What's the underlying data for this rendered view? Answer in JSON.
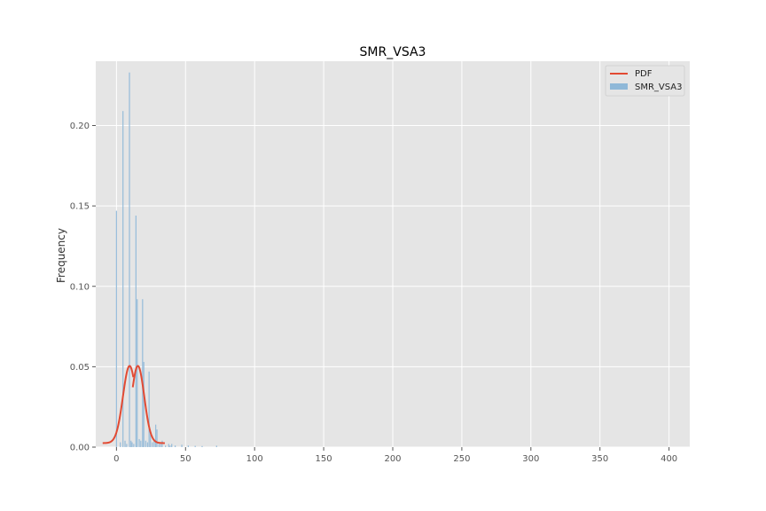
{
  "chart_data": {
    "type": "bar",
    "title": "SMR_VSA3",
    "xlabel": "",
    "ylabel": "Frequency",
    "xlim": [
      -15,
      415
    ],
    "ylim": [
      0,
      0.24
    ],
    "x_ticks": [
      0,
      50,
      100,
      150,
      200,
      250,
      300,
      350,
      400
    ],
    "y_ticks": [
      0.0,
      0.05,
      0.1,
      0.15,
      0.2
    ],
    "y_tick_labels": [
      "0.00",
      "0.05",
      "0.10",
      "0.15",
      "0.20"
    ],
    "grid": true,
    "legend_position": "top-right",
    "legend": [
      "PDF",
      "SMR_VSA3"
    ],
    "histogram": {
      "name": "SMR_VSA3",
      "color": "#8fb8d8",
      "bin_width": 0.8,
      "bins": [
        {
          "x": 0,
          "value": 0.147
        },
        {
          "x": 2.8,
          "value": 0.003
        },
        {
          "x": 4.7,
          "value": 0.209
        },
        {
          "x": 6.2,
          "value": 0.004
        },
        {
          "x": 7.4,
          "value": 0.002
        },
        {
          "x": 9.4,
          "value": 0.233
        },
        {
          "x": 10.5,
          "value": 0.004
        },
        {
          "x": 11.3,
          "value": 0.003
        },
        {
          "x": 12.5,
          "value": 0.002
        },
        {
          "x": 14.1,
          "value": 0.144
        },
        {
          "x": 15.0,
          "value": 0.092
        },
        {
          "x": 16.5,
          "value": 0.005
        },
        {
          "x": 17.6,
          "value": 0.004
        },
        {
          "x": 18.9,
          "value": 0.092
        },
        {
          "x": 19.8,
          "value": 0.053
        },
        {
          "x": 21.2,
          "value": 0.004
        },
        {
          "x": 22.5,
          "value": 0.003
        },
        {
          "x": 23.6,
          "value": 0.047
        },
        {
          "x": 24.6,
          "value": 0.008
        },
        {
          "x": 26.0,
          "value": 0.003
        },
        {
          "x": 27.3,
          "value": 0.004
        },
        {
          "x": 28.4,
          "value": 0.014
        },
        {
          "x": 29.3,
          "value": 0.011
        },
        {
          "x": 30.8,
          "value": 0.002
        },
        {
          "x": 32.0,
          "value": 0.002
        },
        {
          "x": 33.1,
          "value": 0.004
        },
        {
          "x": 35.5,
          "value": 0.001
        },
        {
          "x": 37.8,
          "value": 0.002
        },
        {
          "x": 38.8,
          "value": 0.001
        },
        {
          "x": 40.0,
          "value": 0.002
        },
        {
          "x": 42.5,
          "value": 0.001
        },
        {
          "x": 47.3,
          "value": 0.0015
        },
        {
          "x": 52.0,
          "value": 0.001
        },
        {
          "x": 57.0,
          "value": 0.0008
        },
        {
          "x": 62.0,
          "value": 0.0007
        },
        {
          "x": 72.5,
          "value": 0.0009
        }
      ]
    },
    "pdf_curves": {
      "name": "PDF",
      "color": "#e24a33",
      "components": [
        {
          "mean": 9.5,
          "sd": 4.8,
          "range": [
            -10,
            12.2
          ]
        },
        {
          "mean": 15.5,
          "sd": 4.6,
          "range": [
            11.8,
            35
          ]
        }
      ],
      "peak": 0.0505,
      "floor": 0.0025
    }
  }
}
